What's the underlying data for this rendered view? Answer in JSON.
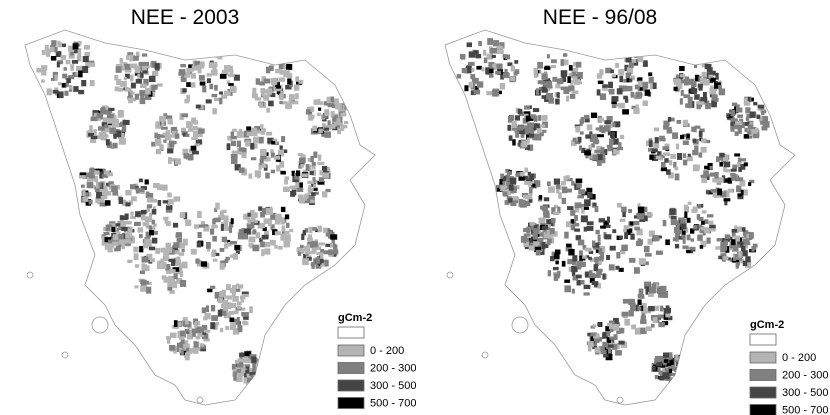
{
  "panels": [
    {
      "title": "NEE - 2003",
      "legend": {
        "title": "gCm-2",
        "items": [
          {
            "label": "0 - 200",
            "color": "#b4b4b4"
          },
          {
            "label": "200 - 300",
            "color": "#808080"
          },
          {
            "label": "300 - 500",
            "color": "#454545"
          },
          {
            "label": "500 - 700",
            "color": "#000000"
          }
        ]
      }
    },
    {
      "title": "NEE - 96/08",
      "legend": {
        "title": "gCm-2",
        "items": [
          {
            "label": "0 - 200",
            "color": "#b4b4b4"
          },
          {
            "label": "200 - 300",
            "color": "#808080"
          },
          {
            "label": "300 - 500",
            "color": "#454545"
          },
          {
            "label": "500 - 700",
            "color": "#000000"
          }
        ]
      }
    }
  ]
}
